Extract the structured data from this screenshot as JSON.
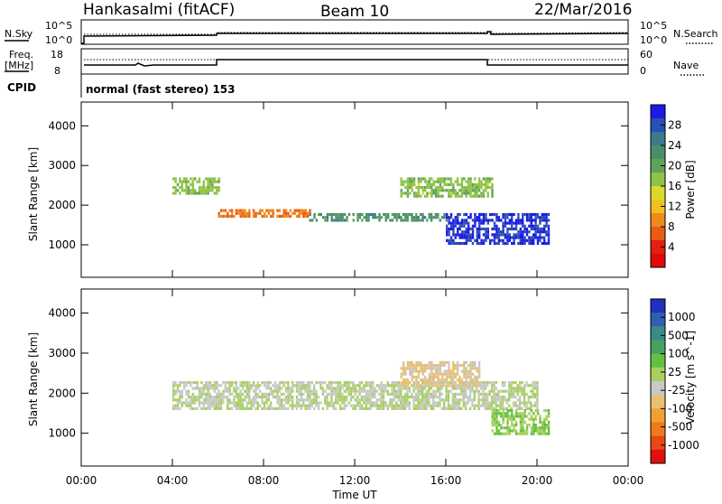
{
  "header": {
    "radar": "Hankasalmi (fitACF)",
    "beam": "Beam 10",
    "date": "22/Mar/2016"
  },
  "strip1": {
    "left_label": "N.Sky",
    "left_ticks": [
      "10^5",
      "10^0"
    ],
    "right_ticks": [
      "10^5",
      "10^0"
    ],
    "right_label": "N.Search"
  },
  "strip2": {
    "left_label_top": "Freq.",
    "left_label_unit": "[MHz]",
    "left_ticks": [
      "18",
      "8"
    ],
    "right_ticks": [
      "60",
      "0"
    ],
    "right_label": "Nave",
    "cpid_label": "CPID",
    "cpid_text": "normal (fast stereo) 153"
  },
  "panels": {
    "ylabel": "Slant Range [km]",
    "xlabel": "Time UT",
    "x_ticks": [
      "00:00",
      "04:00",
      "08:00",
      "12:00",
      "16:00",
      "20:00",
      "00:00"
    ],
    "y_ticks": [
      "4000",
      "3000",
      "2000",
      "1000"
    ]
  },
  "power_scale": {
    "label": "Power [dB]",
    "ticks": [
      "28",
      "24",
      "20",
      "16",
      "12",
      "8",
      "4"
    ],
    "colors": [
      "#1a1ae6",
      "#2a4fb3",
      "#3a7a8c",
      "#4b8f6a",
      "#5fa35a",
      "#8fc246",
      "#d9d92e",
      "#f0c020",
      "#f08a1a",
      "#e85a15",
      "#e02010",
      "#e00808"
    ]
  },
  "velocity_scale": {
    "label": "Velocity [m s^-1]",
    "ticks": [
      "1000",
      "500",
      "100",
      "25",
      "-25",
      "-100",
      "-500",
      "-1000"
    ],
    "colors": [
      "#2030c0",
      "#2e5fb0",
      "#3a8a8a",
      "#4aa060",
      "#66c040",
      "#a8d060",
      "#c8c8c8",
      "#e8c070",
      "#f0a030",
      "#f07a20",
      "#e84818",
      "#e01010"
    ]
  },
  "chart_data": [
    {
      "type": "heatmap",
      "title": "Power [dB]",
      "xlabel": "Time UT",
      "ylabel": "Slant Range [km]",
      "xlim": [
        0,
        24
      ],
      "ylim": [
        180,
        4600
      ],
      "colorbar_range": [
        3,
        30
      ],
      "features": [
        {
          "t_start": 4.0,
          "t_end": 6.0,
          "range_start": 2300,
          "range_end": 2700,
          "value": 18
        },
        {
          "t_start": 6.0,
          "t_end": 10.0,
          "range_start": 1700,
          "range_end": 1900,
          "value": 10
        },
        {
          "t_start": 10.0,
          "t_end": 16.0,
          "range_start": 1600,
          "range_end": 1800,
          "value": 22
        },
        {
          "t_start": 16.0,
          "t_end": 20.5,
          "range_start": 1000,
          "range_end": 1800,
          "value": 28
        },
        {
          "t_start": 14.0,
          "t_end": 18.0,
          "range_start": 2200,
          "range_end": 2700,
          "value": 18
        }
      ]
    },
    {
      "type": "heatmap",
      "title": "Velocity [m s^-1]",
      "xlabel": "Time UT",
      "ylabel": "Slant Range [km]",
      "xlim": [
        0,
        24
      ],
      "ylim": [
        180,
        4600
      ],
      "colorbar_range": [
        -1000,
        1000
      ],
      "features": [
        {
          "t_start": 4.0,
          "t_end": 20.0,
          "range_start": 1600,
          "range_end": 2300,
          "value": 0
        },
        {
          "t_start": 14.0,
          "t_end": 17.5,
          "range_start": 2200,
          "range_end": 2800,
          "value": -200
        },
        {
          "t_start": 18.0,
          "t_end": 20.5,
          "range_start": 1000,
          "range_end": 1600,
          "value": 150
        }
      ]
    }
  ]
}
